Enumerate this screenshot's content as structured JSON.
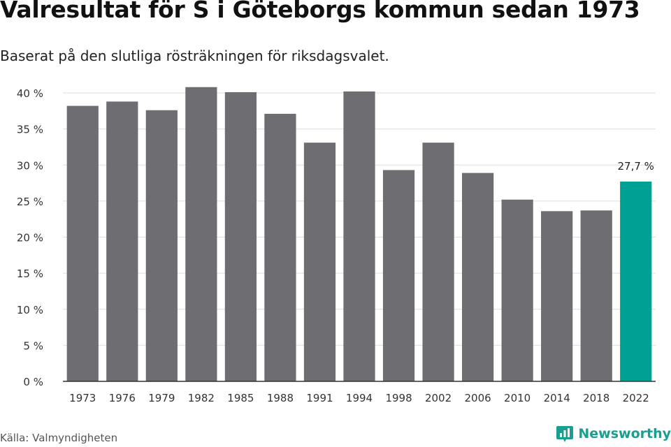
{
  "header": {
    "title": "Valresultat för S i Göteborgs kommun sedan 1973",
    "subtitle": "Baserat på den slutliga rösträkningen för riksdagsvalet."
  },
  "footer": {
    "source": "Källa: Valmyndigheten",
    "brand": "Newsworthy",
    "brand_icon": "newsworthy-logo-icon"
  },
  "colors": {
    "bar": "#6e6d72",
    "highlight": "#00a195",
    "grid": "#dddddd",
    "axis": "#333333",
    "brand": "#1a9e8f"
  },
  "chart_data": {
    "type": "bar",
    "title": "Valresultat för S i Göteborgs kommun sedan 1973",
    "subtitle": "Baserat på den slutliga rösträkningen för riksdagsvalet.",
    "categories": [
      "1973",
      "1976",
      "1979",
      "1982",
      "1985",
      "1988",
      "1991",
      "1994",
      "1998",
      "2002",
      "2006",
      "2010",
      "2014",
      "2018",
      "2022"
    ],
    "values": [
      38.2,
      38.8,
      37.6,
      40.8,
      40.1,
      37.1,
      33.1,
      40.2,
      29.3,
      33.1,
      28.9,
      25.2,
      23.6,
      23.7,
      27.7
    ],
    "highlight_index": 14,
    "highlight_label": "27,7 %",
    "ylim": [
      0,
      40
    ],
    "yticks": [
      "0 %",
      "5 %",
      "10 %",
      "15 %",
      "20 %",
      "25 %",
      "30 %",
      "35 %",
      "40 %"
    ],
    "grid": true,
    "xlabel": "",
    "ylabel": ""
  }
}
